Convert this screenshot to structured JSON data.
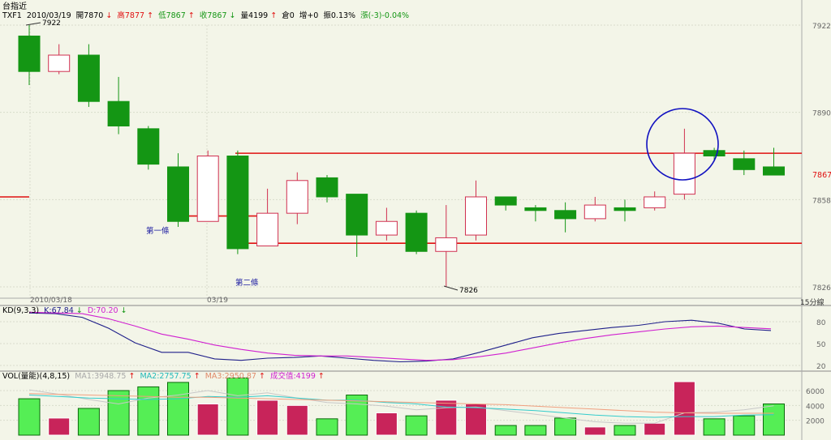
{
  "window_title": "台指近",
  "main_header": {
    "symbol": "TXF1",
    "date": "2010/03/19",
    "open": "開7870",
    "open_arrow": "↓",
    "high": "高7877",
    "high_arrow": "↑",
    "low": "低7867",
    "low_arrow": "↑",
    "close": "收7867",
    "close_arrow": "↓",
    "volume": "量4199",
    "volume_arrow": "↑",
    "oi": "倉0",
    "oi_change": "增+0",
    "amplitude": "振0.13%",
    "change": "漲(-3)-0.04%"
  },
  "kd_header": {
    "label": "KD(9,3,3)",
    "k": "K:67.84",
    "k_arrow": "↓",
    "d": "D:70.20",
    "d_arrow": "↓"
  },
  "vol_header": {
    "label": "VOL(量能)(4,8,15)",
    "ma1": "MA1:3948.75",
    "ma1_arrow": "↑",
    "ma2": "MA2:2757.75",
    "ma2_arrow": "↑",
    "ma3": "MA3:2950.87",
    "ma3_arrow": "↑",
    "vol": "成交值:4199",
    "vol_arrow": "↑"
  },
  "period_label": "15分線",
  "annotations": {
    "line1": "第一條",
    "line2": "第二條",
    "high_point": "7922",
    "low_point": "7826",
    "current_price": "7867"
  },
  "colors": {
    "up": "#d03050",
    "down": "#149614",
    "line": "#e01010",
    "k": "#20208a",
    "d": "#d020d0",
    "vol_up": "#c8245a",
    "vol_down": "#55ee55",
    "ma1": "#c8c8c8",
    "ma2": "#33cccc",
    "ma3": "#f0a080",
    "circle": "#1010c0"
  },
  "chart_data": [
    {
      "type": "candlestick",
      "x_tick_labels": [
        "2010/03/18",
        "03/19"
      ],
      "y_ticks": [
        7826,
        7858,
        7890,
        7922
      ],
      "ylim": [
        7822,
        7930
      ],
      "candles": [
        {
          "open": 7918,
          "high": 7922,
          "low": 7900,
          "close": 7905
        },
        {
          "open": 7905,
          "high": 7915,
          "low": 7904,
          "close": 7911
        },
        {
          "open": 7911,
          "high": 7915,
          "low": 7892,
          "close": 7894
        },
        {
          "open": 7894,
          "high": 7903,
          "low": 7882,
          "close": 7885
        },
        {
          "open": 7884,
          "high": 7885,
          "low": 7869,
          "close": 7871
        },
        {
          "open": 7870,
          "high": 7875,
          "low": 7848,
          "close": 7850
        },
        {
          "open": 7850,
          "high": 7876,
          "low": 7850,
          "close": 7874
        },
        {
          "open": 7874,
          "high": 7876,
          "low": 7838,
          "close": 7840
        },
        {
          "open": 7841,
          "high": 7862,
          "low": 7841,
          "close": 7853
        },
        {
          "open": 7853,
          "high": 7868,
          "low": 7849,
          "close": 7865
        },
        {
          "open": 7866,
          "high": 7867,
          "low": 7857,
          "close": 7859
        },
        {
          "open": 7860,
          "high": 7860,
          "low": 7837,
          "close": 7845
        },
        {
          "open": 7845,
          "high": 7855,
          "low": 7843,
          "close": 7850
        },
        {
          "open": 7853,
          "high": 7854,
          "low": 7838,
          "close": 7839
        },
        {
          "open": 7839,
          "high": 7856,
          "low": 7826,
          "close": 7844
        },
        {
          "open": 7845,
          "high": 7865,
          "low": 7843,
          "close": 7859
        },
        {
          "open": 7859,
          "high": 7859,
          "low": 7854,
          "close": 7856
        },
        {
          "open": 7855,
          "high": 7856,
          "low": 7850,
          "close": 7854
        },
        {
          "open": 7854,
          "high": 7857,
          "low": 7846,
          "close": 7851
        },
        {
          "open": 7851,
          "high": 7859,
          "low": 7850,
          "close": 7856
        },
        {
          "open": 7855,
          "high": 7858,
          "low": 7850,
          "close": 7854
        },
        {
          "open": 7855,
          "high": 7861,
          "low": 7854,
          "close": 7859
        },
        {
          "open": 7860,
          "high": 7884,
          "low": 7858,
          "close": 7875
        },
        {
          "open": 7876,
          "high": 7877,
          "low": 7872,
          "close": 7874
        },
        {
          "open": 7873,
          "high": 7876,
          "low": 7867,
          "close": 7869
        },
        {
          "open": 7870,
          "high": 7877,
          "low": 7867,
          "close": 7867
        }
      ],
      "horizontal_lines": [
        7875,
        7842
      ],
      "short_line_level": 7852,
      "last_close": 7867
    },
    {
      "type": "line",
      "ylim": [
        10,
        100
      ],
      "y_ticks": [
        20,
        50,
        80
      ],
      "series": [
        {
          "name": "K",
          "values": [
            92,
            91,
            86,
            71,
            51,
            38,
            38,
            29,
            27,
            30,
            31,
            33,
            30,
            27,
            25,
            26,
            29,
            38,
            48,
            58,
            64,
            68,
            72,
            75,
            80,
            82,
            78,
            70,
            67.84
          ]
        },
        {
          "name": "D",
          "values": [
            93,
            92,
            91,
            84,
            74,
            63,
            56,
            48,
            42,
            37,
            34,
            33,
            33,
            31,
            29,
            27,
            28,
            32,
            37,
            44,
            51,
            57,
            62,
            66,
            70,
            73,
            74,
            72,
            70.2
          ]
        }
      ]
    },
    {
      "type": "bar",
      "ylim": [
        0,
        8000
      ],
      "y_ticks": [
        2000,
        4000,
        6000
      ],
      "values": [
        4900,
        2300,
        3600,
        6000,
        6500,
        7100,
        4200,
        7700,
        4700,
        4000,
        2200,
        5400,
        3000,
        2600,
        4700,
        4200,
        1300,
        1300,
        2300,
        1100,
        1300,
        1600,
        7200,
        2200,
        2600,
        4199
      ],
      "directions": [
        "down",
        "up",
        "down",
        "down",
        "down",
        "down",
        "up",
        "down",
        "up",
        "up",
        "down",
        "down",
        "up",
        "down",
        "up",
        "up",
        "down",
        "down",
        "down",
        "up",
        "down",
        "up",
        "up",
        "down",
        "down",
        "down"
      ],
      "series": [
        {
          "name": "MA1",
          "values": [
            6100,
            5500,
            4800,
            4200,
            5000,
            5400,
            6000,
            5300,
            5700,
            5000,
            4400,
            4200,
            3900,
            3400,
            3700,
            3800,
            3300,
            2800,
            2300,
            1800,
            1600,
            1600,
            3000,
            3100,
            3400,
            3948.75
          ]
        },
        {
          "name": "MA2",
          "values": [
            5400,
            5200,
            5000,
            4900,
            4800,
            4900,
            5200,
            5100,
            5300,
            5000,
            4700,
            4700,
            4400,
            4200,
            3800,
            3700,
            3500,
            3300,
            3000,
            2700,
            2500,
            2400,
            2500,
            2500,
            2700,
            2757.75
          ]
        },
        {
          "name": "MA3",
          "values": [
            5600,
            5500,
            5400,
            5300,
            5200,
            5100,
            5100,
            5000,
            4900,
            4800,
            4700,
            4600,
            4500,
            4400,
            4300,
            4200,
            4100,
            3900,
            3700,
            3500,
            3300,
            3100,
            3000,
            2950,
            2950,
            2950.87
          ]
        }
      ]
    }
  ]
}
